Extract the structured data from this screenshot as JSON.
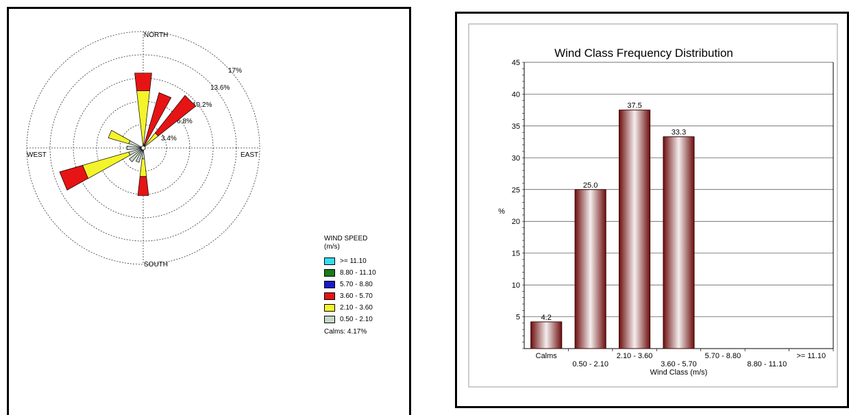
{
  "chart_data": [
    {
      "type": "wind-rose",
      "direction_labels": {
        "north": "NORTH",
        "east": "EAST",
        "south": "SOUTH",
        "west": "WEST"
      },
      "ring_labels": [
        "3.4%",
        "6.8%",
        "10.2%",
        "13.6%",
        "17%"
      ],
      "ring_values": [
        3.4,
        6.8,
        10.2,
        13.6,
        17
      ],
      "legend_title_line1": "WIND SPEED",
      "legend_title_line2": "(m/s)",
      "speed_classes": [
        {
          "label": ">= 11.10",
          "color": "#33ddee"
        },
        {
          "label": "8.80 - 11.10",
          "color": "#1a7a1a"
        },
        {
          "label": "5.70 - 8.80",
          "color": "#1a1acc"
        },
        {
          "label": "3.60 - 5.70",
          "color": "#e61414"
        },
        {
          "label": "2.10 - 3.60",
          "color": "#f4f42a"
        },
        {
          "label": "0.50 - 2.10",
          "color": "#c6d7c6"
        }
      ],
      "calms_text": "Calms: 4.17%",
      "sectors": [
        {
          "direction_deg": 0,
          "values": [
            0,
            8.4,
            2.6
          ]
        },
        {
          "direction_deg": 22.5,
          "values": [
            0,
            0,
            8.4
          ]
        },
        {
          "direction_deg": 45,
          "values": [
            0,
            2.8,
            7.0
          ]
        },
        {
          "direction_deg": 67.5,
          "values": [
            0,
            0,
            0
          ]
        },
        {
          "direction_deg": 90,
          "values": [
            0,
            0,
            0
          ]
        },
        {
          "direction_deg": 112.5,
          "values": [
            0,
            0,
            0
          ]
        },
        {
          "direction_deg": 135,
          "values": [
            0,
            0,
            0
          ]
        },
        {
          "direction_deg": 157.5,
          "values": [
            0,
            0,
            0
          ]
        },
        {
          "direction_deg": 180,
          "values": [
            1.6,
            2.6,
            2.8
          ]
        },
        {
          "direction_deg": 202.5,
          "values": [
            2.2,
            0,
            0
          ]
        },
        {
          "direction_deg": 225,
          "values": [
            2.6,
            0,
            0
          ]
        },
        {
          "direction_deg": 247.5,
          "values": [
            2.2,
            7.0,
            3.5
          ]
        },
        {
          "direction_deg": 270,
          "values": [
            2.4,
            0,
            0
          ]
        },
        {
          "direction_deg": 292.5,
          "values": [
            2.2,
            3.1,
            0
          ]
        },
        {
          "direction_deg": 315,
          "values": [
            0,
            0,
            0
          ]
        },
        {
          "direction_deg": 337.5,
          "values": [
            0,
            0,
            0
          ]
        }
      ]
    },
    {
      "type": "bar",
      "title": "Wind Class Frequency Distribution",
      "xlabel": "Wind Class (m/s)",
      "ylabel": "%",
      "ylim": [
        0,
        45
      ],
      "yticks": [
        5,
        10,
        15,
        20,
        25,
        30,
        35,
        40,
        45
      ],
      "categories": [
        "Calms",
        "0.50 - 2.10",
        "2.10 - 3.60",
        "3.60 - 5.70",
        "5.70 - 8.80",
        "8.80 - 11.10",
        ">= 11.10"
      ],
      "values": [
        4.2,
        25.0,
        37.5,
        33.3,
        0,
        0,
        0
      ],
      "data_labels": [
        "4.2",
        "25.0",
        "37.5",
        "33.3",
        "",
        "",
        ""
      ],
      "bar_color": "#7a1a1a"
    }
  ]
}
